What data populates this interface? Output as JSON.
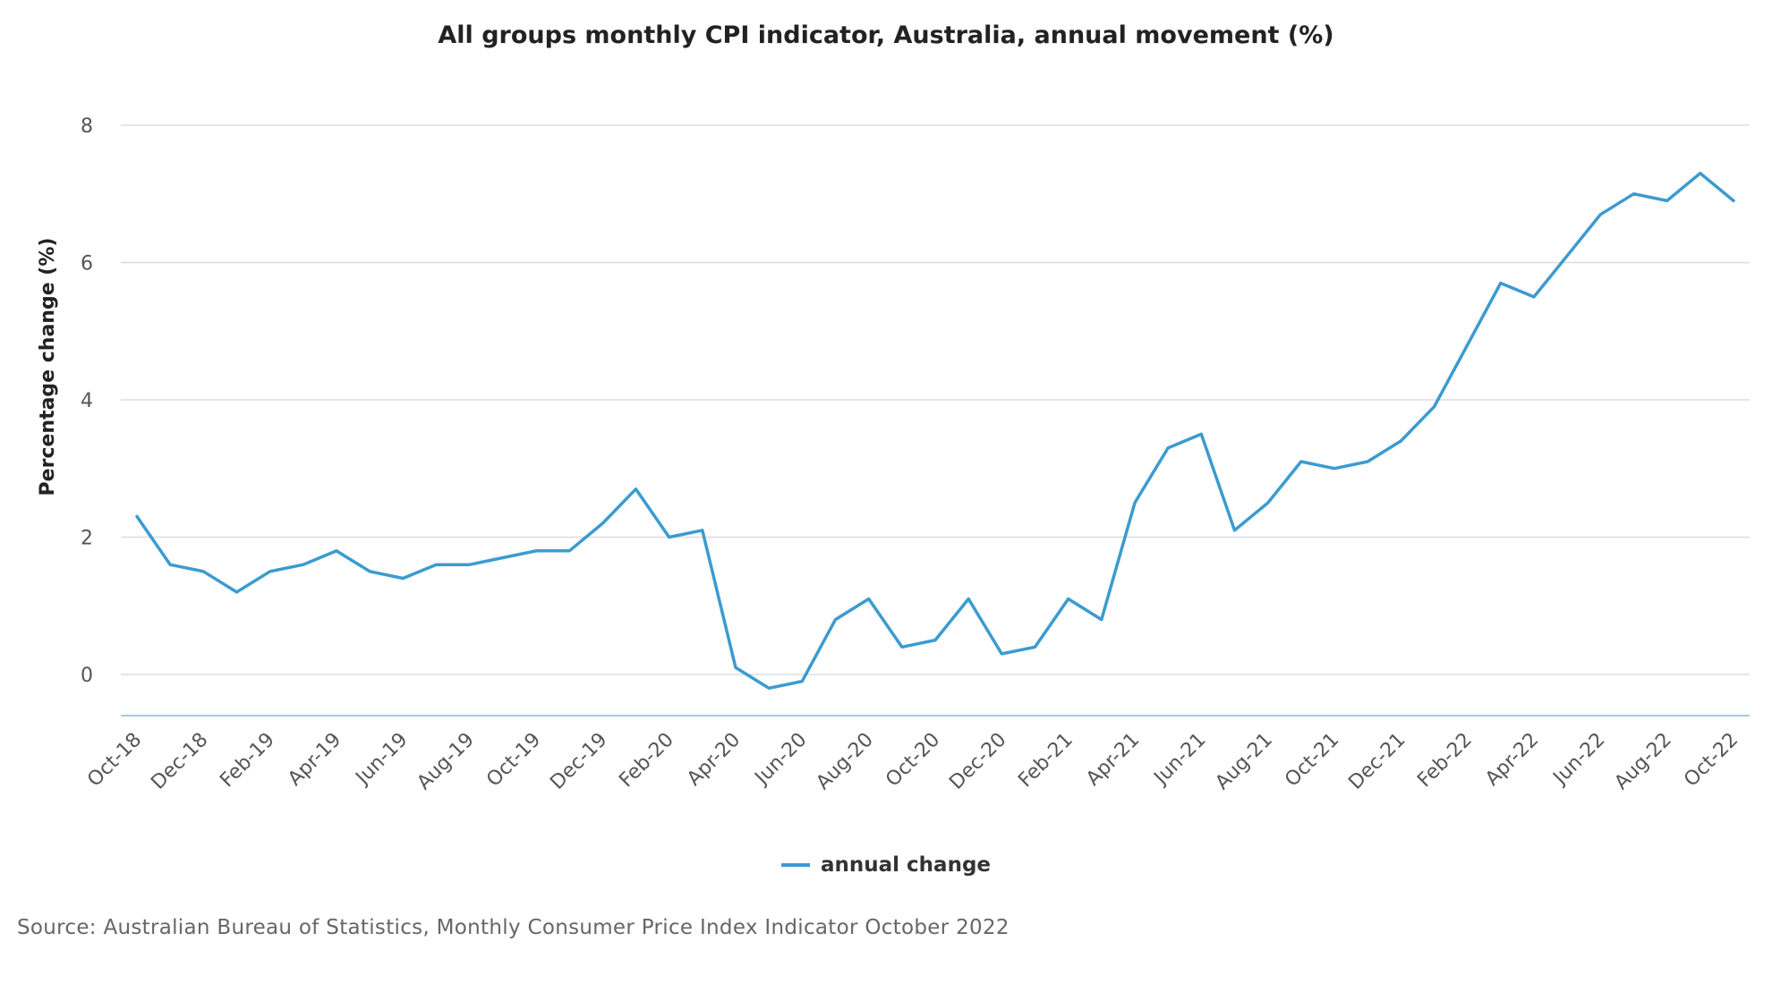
{
  "chart_data": {
    "type": "line",
    "title": "All groups monthly CPI indicator, Australia, annual movement (%)",
    "ylabel": "Percentage change (%)",
    "xlabel": "",
    "ylim": [
      -0.6,
      8
    ],
    "yticks": [
      0,
      2,
      4,
      6,
      8
    ],
    "grid": true,
    "legend_position": "bottom-center",
    "x": [
      "Oct-18",
      "Nov-18",
      "Dec-18",
      "Jan-19",
      "Feb-19",
      "Mar-19",
      "Apr-19",
      "May-19",
      "Jun-19",
      "Jul-19",
      "Aug-19",
      "Sep-19",
      "Oct-19",
      "Nov-19",
      "Dec-19",
      "Jan-20",
      "Feb-20",
      "Mar-20",
      "Apr-20",
      "May-20",
      "Jun-20",
      "Jul-20",
      "Aug-20",
      "Sep-20",
      "Oct-20",
      "Nov-20",
      "Dec-20",
      "Jan-21",
      "Feb-21",
      "Mar-21",
      "Apr-21",
      "May-21",
      "Jun-21",
      "Jul-21",
      "Aug-21",
      "Sep-21",
      "Oct-21",
      "Nov-21",
      "Dec-21",
      "Jan-22",
      "Feb-22",
      "Mar-22",
      "Apr-22",
      "May-22",
      "Jun-22",
      "Jul-22",
      "Aug-22",
      "Sep-22",
      "Oct-22"
    ],
    "xtick_labels": [
      "Oct-18",
      "Dec-18",
      "Feb-19",
      "Apr-19",
      "Jun-19",
      "Aug-19",
      "Oct-19",
      "Dec-19",
      "Feb-20",
      "Apr-20",
      "Jun-20",
      "Aug-20",
      "Oct-20",
      "Dec-20",
      "Feb-21",
      "Apr-21",
      "Jun-21",
      "Aug-21",
      "Oct-21",
      "Dec-21",
      "Feb-22",
      "Apr-22",
      "Jun-22",
      "Aug-22",
      "Oct-22"
    ],
    "series": [
      {
        "name": "annual change",
        "color": "#3b9bd0",
        "values": [
          2.3,
          1.6,
          1.5,
          1.2,
          1.5,
          1.6,
          1.8,
          1.5,
          1.4,
          1.6,
          1.6,
          1.7,
          1.8,
          1.8,
          2.2,
          2.7,
          2.0,
          2.1,
          0.1,
          -0.2,
          -0.1,
          0.8,
          1.1,
          0.4,
          0.5,
          1.1,
          0.3,
          0.4,
          1.1,
          0.8,
          2.5,
          3.3,
          3.5,
          2.1,
          2.5,
          3.1,
          3.0,
          3.1,
          3.4,
          3.9,
          4.8,
          5.7,
          5.5,
          6.1,
          6.7,
          7.0,
          6.9,
          7.3,
          6.9
        ]
      }
    ]
  },
  "legend": {
    "label": "annual change"
  },
  "source": "Source: Australian Bureau of Statistics, Monthly Consumer Price Index Indicator October 2022"
}
